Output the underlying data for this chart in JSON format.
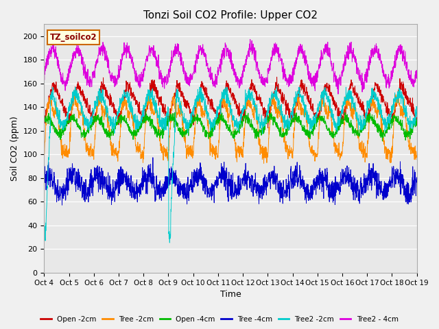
{
  "title": "Tonzi Soil CO2 Profile: Upper CO2",
  "xlabel": "Time",
  "ylabel": "Soil CO2 (ppm)",
  "ylim": [
    0,
    210
  ],
  "yticks": [
    0,
    20,
    40,
    60,
    80,
    100,
    120,
    140,
    160,
    180,
    200
  ],
  "xtick_labels": [
    "Oct 4",
    "Oct 5",
    "Oct 6",
    "Oct 7",
    "Oct 8",
    "Oct 9",
    "Oct 10",
    "Oct 11",
    "Oct 12",
    "Oct 13",
    "Oct 14",
    "Oct 15",
    "Oct 16",
    "Oct 17",
    "Oct 18",
    "Oct 19"
  ],
  "legend_label": "TZ_soilco2",
  "series": [
    {
      "label": "Open -2cm",
      "color": "#cc0000"
    },
    {
      "label": "Tree -2cm",
      "color": "#ff8c00"
    },
    {
      "label": "Open -4cm",
      "color": "#00bb00"
    },
    {
      "label": "Tree -4cm",
      "color": "#0000cc"
    },
    {
      "label": "Tree2 -2cm",
      "color": "#00cccc"
    },
    {
      "label": "Tree2 - 4cm",
      "color": "#dd00dd"
    }
  ],
  "bg_color": "#e8e8e8",
  "fig_bg": "#f0f0f0",
  "grid_color": "#ffffff",
  "n_points": 2000
}
